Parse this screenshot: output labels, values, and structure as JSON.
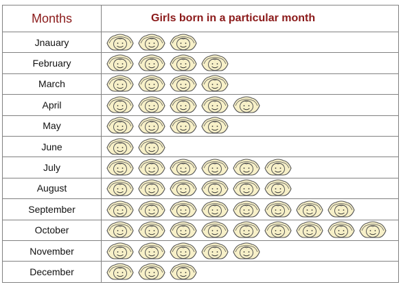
{
  "header": {
    "months_label": "Months",
    "chart_title": "Girls born in a particular month"
  },
  "colors": {
    "header_text": "#8b1a1a",
    "face_fill": "#f7f0c8",
    "face_stroke": "#555555",
    "grid": "#808080"
  },
  "icon": "girl-face-icon",
  "chart_data": {
    "type": "table",
    "title": "Girls born in a particular month",
    "category_label": "Months",
    "categories": [
      "Jnauary",
      "February",
      "March",
      "April",
      "May",
      "June",
      "July",
      "August",
      "September",
      "October",
      "November",
      "December"
    ],
    "values": [
      3,
      4,
      4,
      5,
      4,
      2,
      6,
      6,
      8,
      9,
      5,
      3
    ]
  }
}
